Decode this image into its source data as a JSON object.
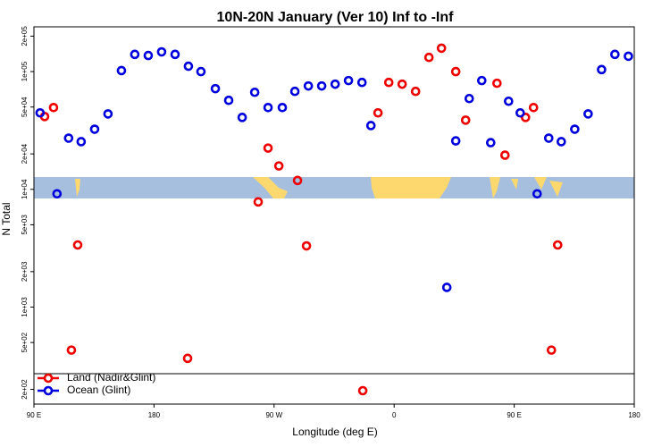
{
  "chart_data": {
    "type": "scatter",
    "title": "10N-20N January (Ver 10)   Inf to -Inf",
    "xlabel": "Longitude (deg E)",
    "ylabel": "N Total",
    "log_y": true,
    "legend": "bottom-left",
    "xlim": [
      -270,
      180
    ],
    "xticks": [
      {
        "value": -270,
        "label": "90 E"
      },
      {
        "value": -180,
        "label": "180"
      },
      {
        "value": -90,
        "label": "90 W"
      },
      0,
      {
        "value": 90,
        "label": "90 E"
      },
      180
    ],
    "ylim": [
      150,
      240000
    ],
    "yticks": [
      {
        "value": 200000,
        "label": "2e+05"
      },
      {
        "value": 100000,
        "label": "1e+05"
      },
      {
        "value": 50000,
        "label": "5e+04"
      },
      {
        "value": 20000,
        "label": "2e+04"
      },
      {
        "value": 10000,
        "label": "1e+04"
      },
      {
        "value": 5000,
        "label": "5e+03"
      },
      {
        "value": 2000,
        "label": "2e+03"
      },
      {
        "value": 1000,
        "label": "1e+03"
      },
      {
        "value": 500,
        "label": "5e+02"
      },
      {
        "value": 200,
        "label": "2e+02"
      }
    ],
    "series": [
      {
        "name": "Land (Nadir&Glint)",
        "color": "#ee0000",
        "x": [
          -262.0,
          -255.3,
          -241.9,
          -237.2,
          -154.8,
          -101.9,
          -94.5,
          -86.4,
          -72.4,
          -65.7,
          -23.5,
          -12.1,
          -4.0,
          6.0,
          16.1,
          26.1,
          35.5,
          46.2,
          53.6,
          77.1,
          83.1,
          98.5,
          104.5,
          117.9,
          122.6
        ],
        "values": [
          41500,
          49500,
          431,
          3370,
          367,
          7820,
          22400,
          15800,
          11900,
          3310,
          195,
          44600,
          80900,
          78200,
          67900,
          132000,
          158000,
          100000,
          38700,
          79600,
          19500,
          40800,
          49500,
          431,
          3370
        ]
      },
      {
        "name": "Ocean (Glint)",
        "color": "#0000dd",
        "x": [
          -265.4,
          -252.7,
          -244.0,
          -234.6,
          -224.5,
          -214.5,
          -204.4,
          -194.4,
          -184.3,
          -174.3,
          -164.2,
          -154.2,
          -144.8,
          -134.0,
          -124.0,
          -113.9,
          -104.5,
          -94.5,
          -83.8,
          -74.4,
          -64.3,
          -54.3,
          -44.2,
          -34.2,
          -24.1,
          -17.4,
          39.5,
          46.2,
          56.3,
          65.7,
          72.4,
          85.8,
          94.5,
          107.2,
          115.9,
          125.3,
          135.4,
          145.4,
          155.5,
          165.5,
          175.6
        ],
        "values": [
          44600,
          9160,
          27200,
          25400,
          32400,
          43700,
          102000,
          140000,
          137000,
          147000,
          140000,
          111000,
          100000,
          71600,
          57000,
          40800,
          66700,
          49500,
          49500,
          67900,
          75500,
          75500,
          78200,
          83900,
          80900,
          34800,
          1470,
          25800,
          59000,
          83900,
          24900,
          56000,
          44600,
          9160,
          27200,
          25400,
          32400,
          43700,
          104000,
          140000,
          135000
        ]
      }
    ]
  }
}
